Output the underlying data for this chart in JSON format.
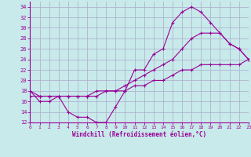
{
  "xlabel": "Windchill (Refroidissement éolien,°C)",
  "bg_color": "#c8eaea",
  "line_color": "#990099",
  "grid_color": "#aaaacc",
  "ylim": [
    12,
    35
  ],
  "xlim": [
    0,
    23
  ],
  "yticks": [
    12,
    14,
    16,
    18,
    20,
    22,
    24,
    26,
    28,
    30,
    32,
    34
  ],
  "xticks": [
    0,
    1,
    2,
    3,
    4,
    5,
    6,
    7,
    8,
    9,
    10,
    11,
    12,
    13,
    14,
    15,
    16,
    17,
    18,
    19,
    20,
    21,
    22,
    23
  ],
  "series1_x": [
    0,
    1,
    2,
    3,
    4,
    5,
    6,
    7,
    8,
    9,
    10,
    11,
    12,
    13,
    14,
    15,
    16,
    17,
    18,
    19,
    20,
    21,
    22,
    23
  ],
  "series1_y": [
    18,
    16,
    16,
    17,
    14,
    13,
    13,
    12,
    12,
    15,
    18,
    22,
    22,
    25,
    26,
    31,
    33,
    34,
    33,
    31,
    29,
    27,
    26,
    24
  ],
  "series2_x": [
    0,
    1,
    2,
    3,
    4,
    5,
    6,
    7,
    8,
    9,
    10,
    11,
    12,
    13,
    14,
    15,
    16,
    17,
    18,
    19,
    20,
    21,
    22,
    23
  ],
  "series2_y": [
    17,
    17,
    17,
    17,
    17,
    17,
    17,
    17,
    18,
    18,
    18,
    19,
    19,
    20,
    20,
    21,
    22,
    22,
    23,
    23,
    23,
    23,
    23,
    24
  ],
  "series3_x": [
    0,
    1,
    2,
    3,
    4,
    5,
    6,
    7,
    8,
    9,
    10,
    11,
    12,
    13,
    14,
    15,
    16,
    17,
    18,
    19,
    20,
    21,
    22,
    23
  ],
  "series3_y": [
    18,
    17,
    17,
    17,
    17,
    17,
    17,
    18,
    18,
    18,
    19,
    20,
    21,
    22,
    23,
    24,
    26,
    28,
    29,
    29,
    29,
    27,
    26,
    24
  ]
}
